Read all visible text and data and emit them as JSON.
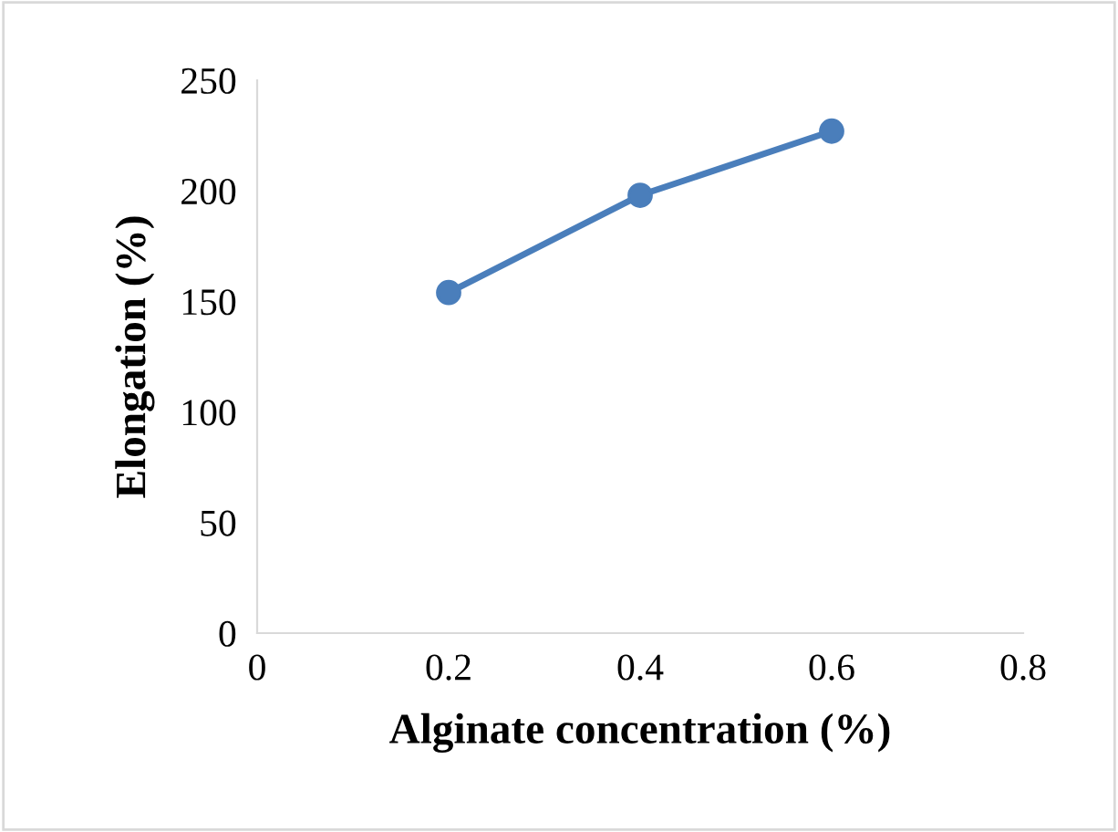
{
  "chart_data": {
    "type": "line",
    "xlabel": "Alginate concentration (%)",
    "ylabel": "Elongation (%)",
    "x": [
      0.2,
      0.4,
      0.6
    ],
    "series": [
      {
        "color": "#4a7ebb",
        "values": [
          154,
          198,
          227
        ]
      }
    ],
    "xlim": [
      0,
      0.8
    ],
    "xticks": [
      0,
      0.2,
      0.4,
      0.6,
      0.8
    ],
    "ylim": [
      0,
      250
    ],
    "yticks": [
      0,
      50,
      100,
      150,
      200,
      250
    ],
    "grid": false,
    "marker": "circle",
    "line_style": "solid"
  }
}
